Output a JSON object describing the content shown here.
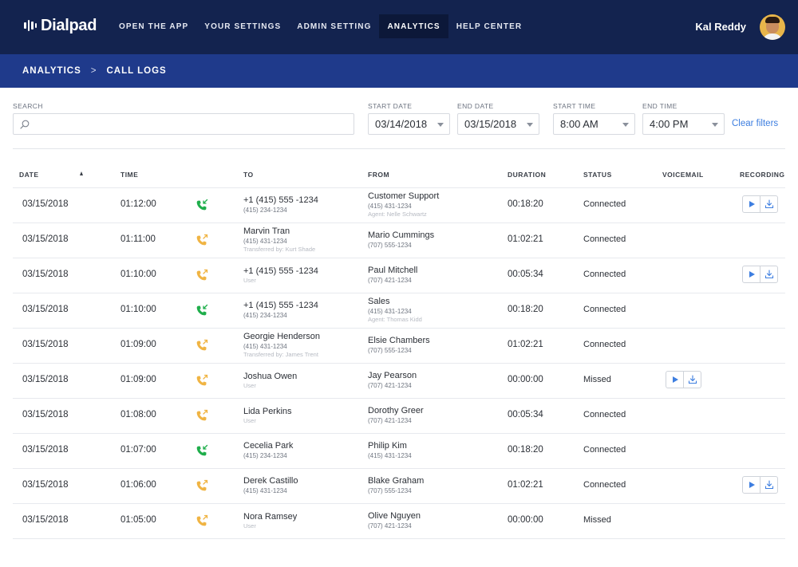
{
  "app": {
    "brand": "Dialpad"
  },
  "nav": {
    "items": [
      {
        "label": "OPEN THE APP",
        "active": false
      },
      {
        "label": "YOUR SETTINGS",
        "active": false
      },
      {
        "label": "ADMIN SETTING",
        "active": false
      },
      {
        "label": "ANALYTICS",
        "active": true
      },
      {
        "label": "HELP CENTER",
        "active": false
      }
    ]
  },
  "user": {
    "name": "Kal Reddy"
  },
  "breadcrumb": {
    "parent": "ANALYTICS",
    "separator": ">",
    "current": "CALL LOGS"
  },
  "filters": {
    "search_label": "SEARCH",
    "search_value": "",
    "start_date_label": "START DATE",
    "start_date": "03/14/2018",
    "end_date_label": "END DATE",
    "end_date": "03/15/2018",
    "start_time_label": "START TIME",
    "start_time": "8:00 AM",
    "end_time_label": "END TIME",
    "end_time": "4:00 PM",
    "clear_label": "Clear filters"
  },
  "table": {
    "headers": {
      "date": "DATE",
      "time": "TIME",
      "to": "TO",
      "from": "FROM",
      "duration": "DURATION",
      "status": "STATUS",
      "voicemail": "VOICEMAIL",
      "recording": "RECORDING"
    },
    "sort": {
      "column": "date",
      "direction": "ascending"
    },
    "rows": [
      {
        "date": "03/15/2018",
        "time": "01:12:00",
        "call_icon": "phone-incoming-icon",
        "to": {
          "name": "+1 (415) 555 -1234",
          "sub": "(415) 234-1234",
          "note": ""
        },
        "from": {
          "name": "Customer Support",
          "sub": "(415) 431-1234",
          "note": "Agent: Nelle Schwartz"
        },
        "duration": "00:18:20",
        "status": "Connected",
        "voicemail": false,
        "recording": true
      },
      {
        "date": "03/15/2018",
        "time": "01:11:00",
        "call_icon": "phone-outgoing-icon",
        "to": {
          "name": "Marvin Tran",
          "sub": "(415) 431-1234",
          "note": "Transferred by: Kurt Shade"
        },
        "from": {
          "name": "Mario Cummings",
          "sub": "(707) 555-1234",
          "note": ""
        },
        "duration": "01:02:21",
        "status": "Connected",
        "voicemail": false,
        "recording": false
      },
      {
        "date": "03/15/2018",
        "time": "01:10:00",
        "call_icon": "phone-outgoing-icon",
        "to": {
          "name": "+1 (415) 555 -1234",
          "sub": "",
          "note": "User"
        },
        "from": {
          "name": "Paul Mitchell",
          "sub": "(707) 421-1234",
          "note": ""
        },
        "duration": "00:05:34",
        "status": "Connected",
        "voicemail": false,
        "recording": true
      },
      {
        "date": "03/15/2018",
        "time": "01:10:00",
        "call_icon": "phone-incoming-icon",
        "to": {
          "name": "+1 (415) 555 -1234",
          "sub": "(415) 234-1234",
          "note": ""
        },
        "from": {
          "name": "Sales",
          "sub": "(415) 431-1234",
          "note": "Agent: Thomas Kidd"
        },
        "duration": "00:18:20",
        "status": "Connected",
        "voicemail": false,
        "recording": false
      },
      {
        "date": "03/15/2018",
        "time": "01:09:00",
        "call_icon": "phone-outgoing-icon",
        "to": {
          "name": "Georgie Henderson",
          "sub": "(415) 431-1234",
          "note": "Transferred by: James Trent"
        },
        "from": {
          "name": "Elsie Chambers",
          "sub": "(707) 555-1234",
          "note": ""
        },
        "duration": "01:02:21",
        "status": "Connected",
        "voicemail": false,
        "recording": false
      },
      {
        "date": "03/15/2018",
        "time": "01:09:00",
        "call_icon": "phone-outgoing-icon",
        "to": {
          "name": "Joshua Owen",
          "sub": "",
          "note": "User"
        },
        "from": {
          "name": "Jay Pearson",
          "sub": "(707) 421-1234",
          "note": ""
        },
        "duration": "00:00:00",
        "status": "Missed",
        "voicemail": true,
        "recording": false
      },
      {
        "date": "03/15/2018",
        "time": "01:08:00",
        "call_icon": "phone-outgoing-icon",
        "to": {
          "name": "Lida Perkins",
          "sub": "",
          "note": "User"
        },
        "from": {
          "name": "Dorothy Greer",
          "sub": "(707) 421-1234",
          "note": ""
        },
        "duration": "00:05:34",
        "status": "Connected",
        "voicemail": false,
        "recording": false
      },
      {
        "date": "03/15/2018",
        "time": "01:07:00",
        "call_icon": "phone-incoming-icon",
        "to": {
          "name": "Cecelia Park",
          "sub": "(415) 234-1234",
          "note": ""
        },
        "from": {
          "name": "Philip Kim",
          "sub": "(415) 431-1234",
          "note": ""
        },
        "duration": "00:18:20",
        "status": "Connected",
        "voicemail": false,
        "recording": false
      },
      {
        "date": "03/15/2018",
        "time": "01:06:00",
        "call_icon": "phone-outgoing-icon",
        "to": {
          "name": "Derek Castillo",
          "sub": "(415) 431-1234",
          "note": ""
        },
        "from": {
          "name": "Blake Graham",
          "sub": "(707) 555-1234",
          "note": ""
        },
        "duration": "01:02:21",
        "status": "Connected",
        "voicemail": false,
        "recording": true
      },
      {
        "date": "03/15/2018",
        "time": "01:05:00",
        "call_icon": "phone-outgoing-icon",
        "to": {
          "name": "Nora Ramsey",
          "sub": "",
          "note": "User"
        },
        "from": {
          "name": "Olive Nguyen",
          "sub": "(707) 421-1234",
          "note": ""
        },
        "duration": "00:00:00",
        "status": "Missed",
        "voicemail": false,
        "recording": false
      }
    ]
  },
  "colors": {
    "topbar": "#13234f",
    "breadcrumb_bar": "#1f3a8b",
    "link": "#3d7ee0",
    "incoming_call": "#1fae4b",
    "outgoing_call": "#f0b443",
    "media_icon": "#3d7ee0"
  }
}
